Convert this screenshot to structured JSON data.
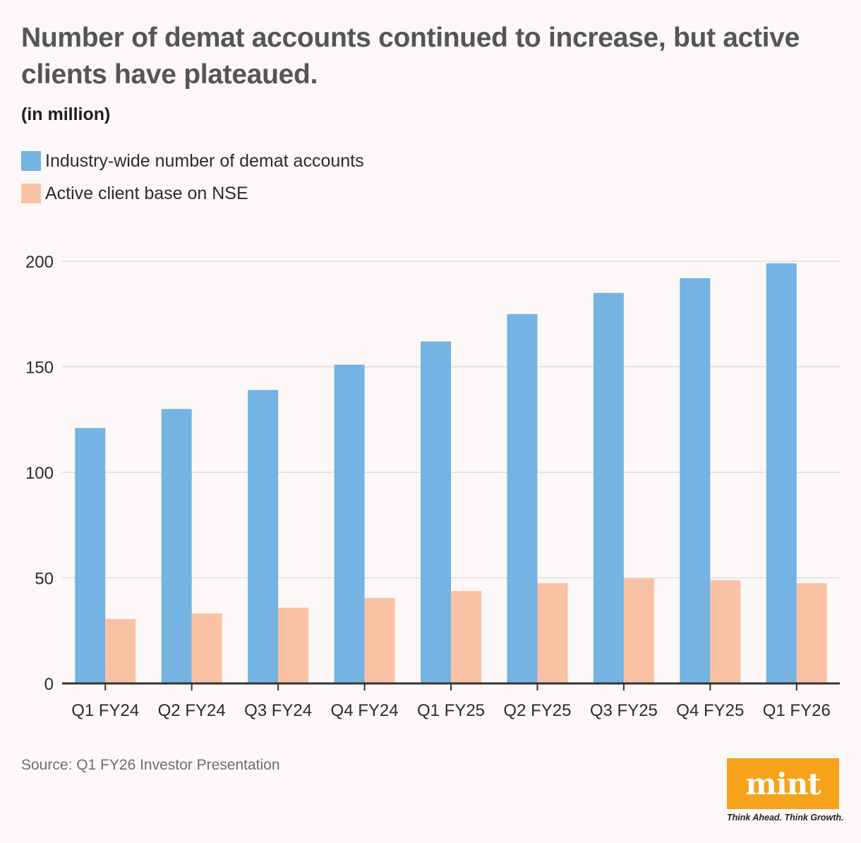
{
  "header": {
    "title": "Number of demat accounts continued to increase, but active clients have plateaued.",
    "subtitle": "(in million)"
  },
  "legend": [
    {
      "label": "Industry-wide number of demat accounts",
      "color": "#74b3e2"
    },
    {
      "label": "Active client base on NSE",
      "color": "#fac2a4"
    }
  ],
  "chart_data": {
    "type": "bar",
    "title": "Number of demat accounts continued to increase, but active clients have plateaued.",
    "ylabel": "(in million)",
    "xlabel": "",
    "ylim": [
      0,
      200
    ],
    "yticks": [
      0,
      50,
      100,
      150,
      200
    ],
    "grid": true,
    "legend_position": "top-left",
    "categories": [
      "Q1 FY24",
      "Q2 FY24",
      "Q3 FY24",
      "Q4 FY24",
      "Q1 FY25",
      "Q2 FY25",
      "Q3 FY25",
      "Q4 FY25",
      "Q1 FY26"
    ],
    "series": [
      {
        "name": "Industry-wide number of demat accounts",
        "color": "#74b3e2",
        "values": [
          121,
          130,
          139,
          151,
          162,
          175,
          185,
          192,
          199
        ]
      },
      {
        "name": "Active client base on NSE",
        "color": "#fac2a4",
        "values": [
          30.5,
          33.2,
          35.9,
          40.5,
          43.8,
          47.5,
          49.8,
          48.9,
          47.5
        ]
      }
    ]
  },
  "footer": {
    "source": "Source: Q1 FY26 Investor Presentation",
    "logo_text": "mint",
    "tagline": "Think Ahead. Think Growth."
  }
}
